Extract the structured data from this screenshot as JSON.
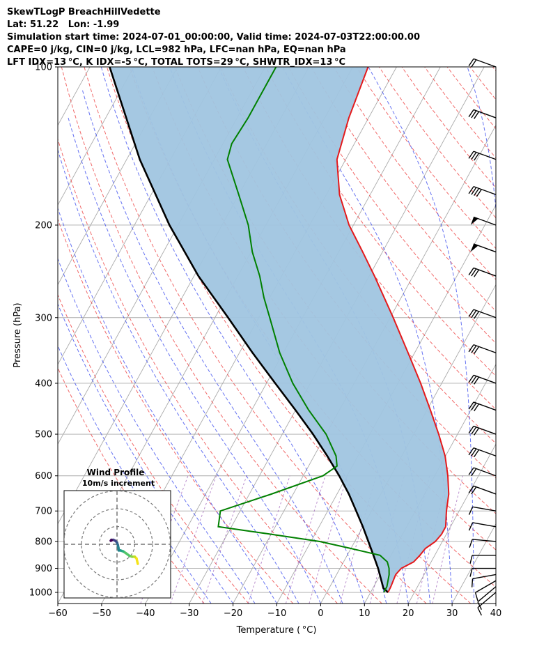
{
  "header": {
    "title": "SkewTLogP BreachHillVedette",
    "location": "Lat: 51.22   Lon: -1.99",
    "times": "Simulation start time: 2024-07-01_00:00:00, Valid time: 2024-07-03T22:00:00.00",
    "params": "CAPE=0 j/kg, CIN=0 j/kg, LCL=982 hPa, LFC=nan hPa, EQ=nan hPa",
    "indices": "LFT IDX=13 °C, K IDX=-5 °C, TOTAL TOTS=29 °C, SHWTR_IDX=13 °C"
  },
  "chart_data": {
    "type": "line",
    "xlabel": "Temperature ( °C)",
    "ylabel": "Pressure (hPa)",
    "xlim": [
      -60,
      40
    ],
    "ylim": [
      1050,
      100
    ],
    "y_scale": "log",
    "x_ticks": [
      -60,
      -50,
      -40,
      -30,
      -20,
      -10,
      0,
      10,
      20,
      30,
      40
    ],
    "x_tick_labels": [
      "−60",
      "−50",
      "−40",
      "−30",
      "−20",
      "−10",
      "0",
      "10",
      "20",
      "30",
      "40"
    ],
    "y_ticks": [
      1000,
      900,
      800,
      700,
      600,
      500,
      400,
      300,
      200,
      100
    ],
    "y_tick_labels": [
      "1000",
      "900",
      "800",
      "700",
      "600",
      "500",
      "400",
      "300",
      "200",
      "100"
    ],
    "grid": true,
    "colors": {
      "temperature": "#e41a1c",
      "dewpoint": "#008000",
      "parcel": "#000000",
      "shade": "#a0c5e0",
      "dry_adiabat": "#ee4444",
      "moist_adiabat": "#3344ee",
      "mixing_ratio": "#8e44ad",
      "isotherm": "#aaaaaa"
    },
    "series": [
      {
        "key": "temperature",
        "pressure": [
          1000,
          975,
          950,
          925,
          900,
          875,
          850,
          825,
          800,
          775,
          750,
          700,
          650,
          600,
          550,
          500,
          450,
          400,
          350,
          300,
          250,
          225,
          200,
          175,
          150,
          125,
          100
        ],
        "temp": [
          14.0,
          13.9,
          13.7,
          13.5,
          14.0,
          16.0,
          16.6,
          17.0,
          18.4,
          18.9,
          18.9,
          17.1,
          15.5,
          13.0,
          9.9,
          5.7,
          0.8,
          -4.8,
          -11.5,
          -19.3,
          -28.8,
          -34.5,
          -41.0,
          -47.0,
          -52.0,
          -54.5,
          -56.5
        ]
      },
      {
        "key": "dewpoint",
        "pressure": [
          1000,
          975,
          950,
          925,
          900,
          875,
          850,
          825,
          800,
          775,
          750,
          700,
          650,
          600,
          575,
          550,
          500,
          450,
          400,
          350,
          300,
          275,
          250,
          225,
          200,
          175,
          150,
          140,
          125,
          100
        ],
        "temp": [
          13.0,
          13.0,
          12.5,
          12.0,
          11.2,
          10.0,
          7.5,
          0.0,
          -8.0,
          -20.0,
          -33.0,
          -34.5,
          -25.0,
          -15.5,
          -13.5,
          -15.0,
          -20.0,
          -27.0,
          -34.0,
          -40.8,
          -47.5,
          -51.3,
          -55.0,
          -59.7,
          -64.0,
          -70.0,
          -77.0,
          -78.0,
          -77.5,
          -77.5
        ]
      },
      {
        "key": "parcel",
        "pressure": [
          1000,
          982,
          950,
          900,
          850,
          800,
          750,
          700,
          650,
          600,
          550,
          500,
          450,
          400,
          350,
          300,
          250,
          200,
          150,
          100
        ],
        "temp": [
          14.0,
          12.4,
          11.0,
          8.7,
          6.0,
          3.1,
          0.0,
          -3.5,
          -7.3,
          -11.8,
          -17.0,
          -23.0,
          -30.0,
          -38.0,
          -47.0,
          -57.0,
          -69.0,
          -82.0,
          -97.0,
          -115.5
        ]
      }
    ],
    "wind_barbs": {
      "pressure": [
        1000,
        975,
        950,
        925,
        900,
        850,
        800,
        750,
        700,
        650,
        600,
        550,
        500,
        450,
        400,
        350,
        300,
        250,
        225,
        200,
        175,
        150,
        125,
        100
      ],
      "speed_kt": [
        10,
        10,
        10,
        10,
        10,
        10,
        10,
        10,
        10,
        20,
        20,
        30,
        30,
        30,
        30,
        30,
        30,
        30,
        50,
        50,
        40,
        30,
        30,
        20
      ],
      "direction_deg": [
        230,
        230,
        240,
        260,
        270,
        270,
        275,
        280,
        280,
        290,
        290,
        290,
        290,
        290,
        290,
        290,
        290,
        290,
        290,
        290,
        290,
        290,
        290,
        290
      ]
    },
    "hodograph": {
      "title": "Wind Profile",
      "subtitle": "10m/s increment",
      "rings_ms": [
        10,
        20,
        30
      ],
      "u": [
        11.7,
        11.0,
        10.0,
        8.5,
        7.0,
        5.0,
        3.5,
        2.0,
        1.0,
        0.8,
        0.5,
        0.0,
        -1.0,
        -2.0,
        -3.2,
        -3.5,
        -3.0
      ],
      "v": [
        -11.0,
        -8.0,
        -7.0,
        -7.0,
        -6.5,
        -5.0,
        -4.0,
        -3.5,
        -3.5,
        -2.0,
        -0.5,
        1.0,
        2.0,
        2.5,
        2.5,
        2.0,
        2.2
      ],
      "colors": [
        "#f5e31a",
        "#c5df1e",
        "#89d548",
        "#53c568",
        "#2bb07f",
        "#1e9b8a",
        "#25848e",
        "#2d708e",
        "#38588c",
        "#433e85",
        "#482576",
        "#440154"
      ]
    }
  }
}
